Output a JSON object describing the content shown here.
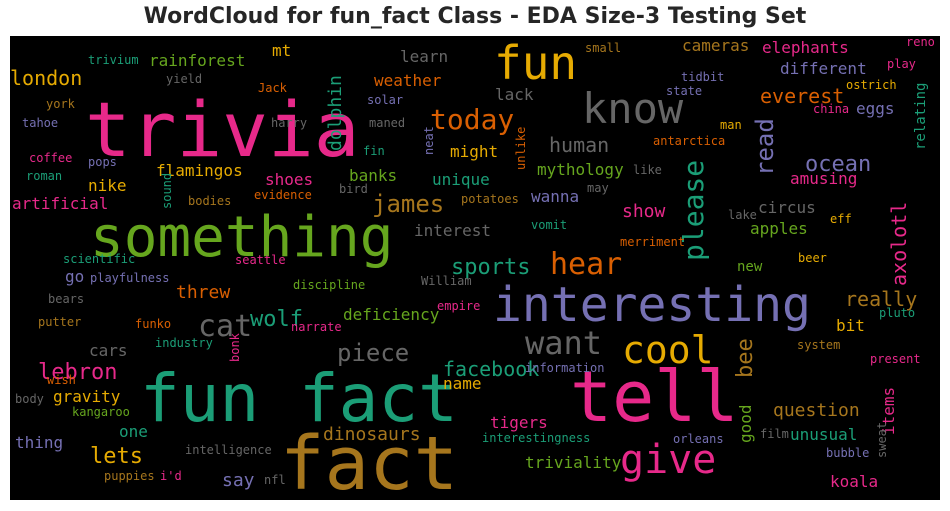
{
  "chart_data": {
    "type": "wordcloud",
    "title": "WordCloud for fun_fact Class - EDA Size-3 Testing Set",
    "background": "#000000",
    "palette": "Dark2",
    "words": [
      {
        "text": "trivia",
        "color": "#e7298a"
      },
      {
        "text": "fact",
        "color": "#a6761d"
      },
      {
        "text": "fun fact",
        "color": "#1b9e77"
      },
      {
        "text": "tell",
        "color": "#e7298a"
      },
      {
        "text": "something",
        "color": "#66a61e"
      },
      {
        "text": "interesting",
        "color": "#7570b3"
      },
      {
        "text": "know",
        "color": "#666666"
      },
      {
        "text": "fun",
        "color": "#e6ab02"
      },
      {
        "text": "give",
        "color": "#e7298a"
      },
      {
        "text": "cool",
        "color": "#e6ab02"
      },
      {
        "text": "want",
        "color": "#666666"
      },
      {
        "text": "hear",
        "color": "#d95f02"
      },
      {
        "text": "please",
        "color": "#1b9e77"
      },
      {
        "text": "today",
        "color": "#d95f02"
      },
      {
        "text": "piece",
        "color": "#666666"
      },
      {
        "text": "cat",
        "color": "#666666"
      },
      {
        "text": "james",
        "color": "#a6761d"
      },
      {
        "text": "wolf",
        "color": "#1b9e77"
      },
      {
        "text": "lebron",
        "color": "#e7298a"
      },
      {
        "text": "ocean",
        "color": "#7570b3"
      },
      {
        "text": "read",
        "color": "#7570b3"
      },
      {
        "text": "sports",
        "color": "#1b9e77"
      },
      {
        "text": "bee",
        "color": "#a6761d"
      },
      {
        "text": "facebook",
        "color": "#1b9e77"
      },
      {
        "text": "really",
        "color": "#a6761d"
      },
      {
        "text": "everest",
        "color": "#d95f02"
      },
      {
        "text": "lets",
        "color": "#e6ab02"
      },
      {
        "text": "london",
        "color": "#e6ab02"
      },
      {
        "text": "human",
        "color": "#666666"
      },
      {
        "text": "axolotl",
        "color": "#e7298a"
      },
      {
        "text": "dolphin",
        "color": "#1b9e77"
      },
      {
        "text": "question",
        "color": "#a6761d"
      },
      {
        "text": "dinosaurs",
        "color": "#a6761d"
      },
      {
        "text": "threw",
        "color": "#d95f02"
      },
      {
        "text": "say",
        "color": "#7570b3"
      },
      {
        "text": "show",
        "color": "#e7298a"
      },
      {
        "text": "gravity",
        "color": "#e6ab02"
      },
      {
        "text": "cars",
        "color": "#666666"
      },
      {
        "text": "mythology",
        "color": "#66a61e"
      },
      {
        "text": "rainforest",
        "color": "#66a61e"
      },
      {
        "text": "mt",
        "color": "#e6ab02"
      },
      {
        "text": "different",
        "color": "#7570b3"
      },
      {
        "text": "elephants",
        "color": "#e7298a"
      },
      {
        "text": "cameras",
        "color": "#a6761d"
      },
      {
        "text": "weather",
        "color": "#d95f02"
      },
      {
        "text": "learn",
        "color": "#666666"
      },
      {
        "text": "lack",
        "color": "#666666"
      },
      {
        "text": "flamingos",
        "color": "#e6ab02"
      },
      {
        "text": "shoes",
        "color": "#e7298a"
      },
      {
        "text": "banks",
        "color": "#66a61e"
      },
      {
        "text": "unique",
        "color": "#1b9e77"
      },
      {
        "text": "might",
        "color": "#e6ab02"
      },
      {
        "text": "nike",
        "color": "#e6ab02"
      },
      {
        "text": "artificial",
        "color": "#e7298a"
      },
      {
        "text": "wanna",
        "color": "#7570b3"
      },
      {
        "text": "amusing",
        "color": "#e7298a"
      },
      {
        "text": "circus",
        "color": "#666666"
      },
      {
        "text": "apples",
        "color": "#66a61e"
      },
      {
        "text": "interest",
        "color": "#666666"
      },
      {
        "text": "go",
        "color": "#7570b3"
      },
      {
        "text": "new",
        "color": "#66a61e"
      },
      {
        "text": "deficiency",
        "color": "#66a61e"
      },
      {
        "text": "bit",
        "color": "#e6ab02"
      },
      {
        "text": "good",
        "color": "#66a61e"
      },
      {
        "text": "items",
        "color": "#e7298a"
      },
      {
        "text": "tigers",
        "color": "#e7298a"
      },
      {
        "text": "unusual",
        "color": "#1b9e77"
      },
      {
        "text": "one",
        "color": "#1b9e77"
      },
      {
        "text": "name",
        "color": "#e6ab02"
      },
      {
        "text": "thing",
        "color": "#7570b3"
      },
      {
        "text": "triviality",
        "color": "#66a61e"
      },
      {
        "text": "koala",
        "color": "#e7298a"
      },
      {
        "text": "eggs",
        "color": "#7570b3"
      },
      {
        "text": "relating",
        "color": "#1b9e77"
      },
      {
        "text": "trivium",
        "color": "#1b9e77"
      },
      {
        "text": "yield",
        "color": "#666666"
      },
      {
        "text": "york",
        "color": "#a6761d"
      },
      {
        "text": "tahoe",
        "color": "#7570b3"
      },
      {
        "text": "coffee",
        "color": "#e7298a"
      },
      {
        "text": "roman",
        "color": "#1b9e77"
      },
      {
        "text": "pops",
        "color": "#7570b3"
      },
      {
        "text": "Jack",
        "color": "#d95f02"
      },
      {
        "text": "solar",
        "color": "#7570b3"
      },
      {
        "text": "harry",
        "color": "#666666"
      },
      {
        "text": "maned",
        "color": "#666666"
      },
      {
        "text": "fin",
        "color": "#1b9e77"
      },
      {
        "text": "neat",
        "color": "#7570b3"
      },
      {
        "text": "sound",
        "color": "#1b9e77"
      },
      {
        "text": "bodies",
        "color": "#a6761d"
      },
      {
        "text": "evidence",
        "color": "#d95f02"
      },
      {
        "text": "bird",
        "color": "#666666"
      },
      {
        "text": "potatoes",
        "color": "#a6761d"
      },
      {
        "text": "vomit",
        "color": "#1b9e77"
      },
      {
        "text": "may",
        "color": "#666666"
      },
      {
        "text": "merriment",
        "color": "#d95f02"
      },
      {
        "text": "like",
        "color": "#666666"
      },
      {
        "text": "unlike",
        "color": "#d95f02"
      },
      {
        "text": "lake",
        "color": "#666666"
      },
      {
        "text": "eff",
        "color": "#e6ab02"
      },
      {
        "text": "beer",
        "color": "#e6ab02"
      },
      {
        "text": "small",
        "color": "#a6761d"
      },
      {
        "text": "reno",
        "color": "#e7298a"
      },
      {
        "text": "tidbit",
        "color": "#7570b3"
      },
      {
        "text": "state",
        "color": "#7570b3"
      },
      {
        "text": "play",
        "color": "#e7298a"
      },
      {
        "text": "ostrich",
        "color": "#e6ab02"
      },
      {
        "text": "china",
        "color": "#e7298a"
      },
      {
        "text": "man",
        "color": "#e6ab02"
      },
      {
        "text": "antarctica",
        "color": "#d95f02"
      },
      {
        "text": "scientific",
        "color": "#1b9e77"
      },
      {
        "text": "playfulness",
        "color": "#7570b3"
      },
      {
        "text": "seattle",
        "color": "#e7298a"
      },
      {
        "text": "bears",
        "color": "#666666"
      },
      {
        "text": "putter",
        "color": "#a6761d"
      },
      {
        "text": "funko",
        "color": "#d95f02"
      },
      {
        "text": "industry",
        "color": "#1b9e77"
      },
      {
        "text": "narrate",
        "color": "#e7298a"
      },
      {
        "text": "discipline",
        "color": "#66a61e"
      },
      {
        "text": "William",
        "color": "#666666"
      },
      {
        "text": "empire",
        "color": "#e7298a"
      },
      {
        "text": "pluto",
        "color": "#1b9e77"
      },
      {
        "text": "system",
        "color": "#a6761d"
      },
      {
        "text": "present",
        "color": "#e7298a"
      },
      {
        "text": "bonk",
        "color": "#e7298a"
      },
      {
        "text": "wish",
        "color": "#d95f02"
      },
      {
        "text": "information",
        "color": "#7570b3"
      },
      {
        "text": "body",
        "color": "#666666"
      },
      {
        "text": "kangaroo",
        "color": "#66a61e"
      },
      {
        "text": "intelligence",
        "color": "#666666"
      },
      {
        "text": "interestingness",
        "color": "#1b9e77"
      },
      {
        "text": "orleans",
        "color": "#7570b3"
      },
      {
        "text": "film",
        "color": "#666666"
      },
      {
        "text": "sweat",
        "color": "#666666"
      },
      {
        "text": "bubble",
        "color": "#7570b3"
      },
      {
        "text": "puppies",
        "color": "#a6761d"
      },
      {
        "text": "i'd",
        "color": "#e7298a"
      },
      {
        "text": "nfl",
        "color": "#666666"
      }
    ]
  }
}
